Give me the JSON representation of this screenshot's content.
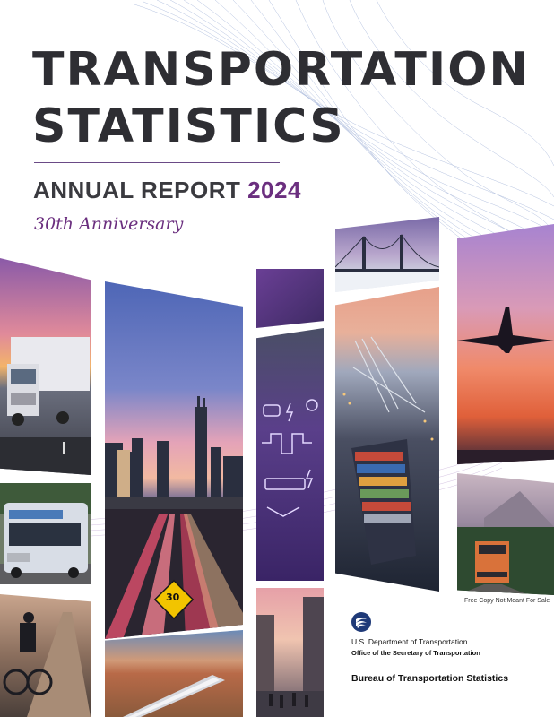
{
  "cover": {
    "title_line1": "TRANSPORTATION",
    "title_line2": "STATISTICS",
    "subtitle_prefix": "ANNUAL REPORT ",
    "subtitle_year": "2024",
    "anniversary": "30th Anniversary",
    "disclaimer": "Free Copy Not Meant For Sale",
    "speed_sign": "30"
  },
  "publisher": {
    "department": "U.S. Department of Transportation",
    "office": "Office of the Secretary of Transportation",
    "bureau": "Bureau of Transportation Statistics"
  },
  "colors": {
    "title": "#2e2e33",
    "accent_purple": "#6b2f7f",
    "logo_blue": "#1f3a78"
  }
}
